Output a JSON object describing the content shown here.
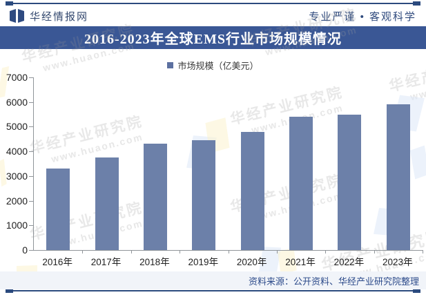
{
  "header": {
    "brand": "华经情报网",
    "slogan": "专业严谨 • 客观科学"
  },
  "titlebar": {
    "title": "2016-2023年全球EMS行业市场规模情况"
  },
  "legend": {
    "label": "市场规模（亿美元）"
  },
  "chart_data": {
    "type": "bar",
    "title": "2016-2023年全球EMS行业市场规模情况",
    "series_name": "市场规模（亿美元）",
    "categories": [
      "2016年",
      "2017年",
      "2018年",
      "2019年",
      "2020年",
      "2021年",
      "2022年",
      "2023年"
    ],
    "values": [
      3300,
      3750,
      4300,
      4450,
      4800,
      5400,
      5500,
      5900
    ],
    "xlabel": "",
    "ylabel": "",
    "ylim": [
      0,
      7000
    ],
    "yticks": [
      0,
      1000,
      2000,
      3000,
      4000,
      5000,
      6000,
      7000
    ],
    "grid": false,
    "legend_position": "top-center",
    "bar_color": "#6c80a9"
  },
  "footer": {
    "source": "资料来源：公开资料、华经产业研究院整理"
  },
  "watermark": {
    "line1": "华经产业研究院",
    "line2": "www.huaon.com"
  },
  "colors": {
    "titlebar_bg": "#3a5795",
    "bar_fill": "#6c80a9",
    "rule_line": "#2b4a7e",
    "footer_bg": "#f1f4f9",
    "footer_text": "#2c4a8a",
    "axis": "#8f9499",
    "watermark_yellow": "#fbf2cd",
    "watermark_blue": "#dce8f8"
  }
}
